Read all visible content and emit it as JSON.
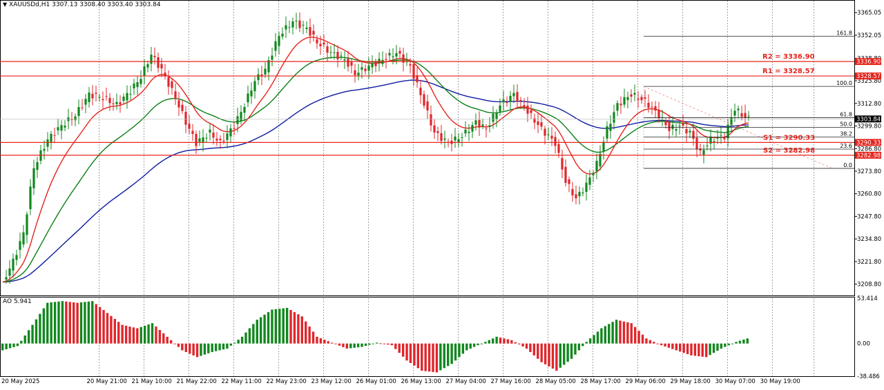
{
  "header": {
    "symbol": "XAUUSDd,H1",
    "ohlc": "3307.13 3308.40 3303.40 3303.84"
  },
  "indicator": {
    "label": "AO 5.941"
  },
  "colors": {
    "bull": "#12871f",
    "bear": "#e0262b",
    "level": "#e5231b",
    "ma_fast": "#e5231b",
    "ma_mid": "#0a7f14",
    "ma_slow": "#0d1aa0",
    "grid": "#8a8a8a"
  },
  "levels": [
    {
      "name": "R2",
      "label": "R2 = 3336.90",
      "value": 3336.9,
      "tag": "3336.90"
    },
    {
      "name": "R1",
      "label": "R1 = 3328.57",
      "value": 3328.57,
      "tag": "3328.57"
    },
    {
      "name": "S1",
      "label": "S1 = 3290.33",
      "value": 3290.33,
      "tag": "3290.33"
    },
    {
      "name": "S2",
      "label": "S2 = 3282.98",
      "value": 3282.98,
      "tag": "3282.98"
    }
  ],
  "fib_levels": [
    {
      "label": "161.8",
      "value": 3351.5
    },
    {
      "label": "100.0",
      "value": 3322.6
    },
    {
      "label": "61.8",
      "value": 3304.6
    },
    {
      "label": "50.0",
      "value": 3299.0
    },
    {
      "label": "38.2",
      "value": 3293.4
    },
    {
      "label": "23.6",
      "value": 3286.5
    },
    {
      "label": "0.0",
      "value": 3275.4
    }
  ],
  "chart_data": [
    {
      "type": "candlestick",
      "title": "XAUUSDd,H1",
      "ylim": [
        3202.3,
        3371.5
      ],
      "y_ticks": [
        "3365.05",
        "3352.05",
        "3338.80",
        "3325.80",
        "3312.80",
        "3299.80",
        "3286.80",
        "3273.80",
        "3260.80",
        "3247.80",
        "3234.80",
        "3221.80",
        "3208.80"
      ],
      "x_ticks": [
        "20 May 2025",
        "20 May 21:00",
        "21 May 10:00",
        "21 May 22:00",
        "22 May 11:00",
        "22 May 23:00",
        "23 May 12:00",
        "26 May 01:00",
        "26 May 13:00",
        "27 May 04:00",
        "27 May 16:00",
        "28 May 05:00",
        "28 May 17:00",
        "29 May 06:00",
        "29 May 18:00",
        "30 May 07:00",
        "30 May 19:00"
      ],
      "current_price": "3303.84",
      "anchors": [
        [
          0,
          3210
        ],
        [
          3,
          3222
        ],
        [
          6,
          3238
        ],
        [
          9,
          3276
        ],
        [
          13,
          3292
        ],
        [
          17,
          3300
        ],
        [
          21,
          3306
        ],
        [
          25,
          3318
        ],
        [
          29,
          3316
        ],
        [
          33,
          3312
        ],
        [
          37,
          3320
        ],
        [
          40,
          3328
        ],
        [
          43,
          3341
        ],
        [
          46,
          3332
        ],
        [
          50,
          3316
        ],
        [
          53,
          3302
        ],
        [
          56,
          3290
        ],
        [
          60,
          3296
        ],
        [
          63,
          3290
        ],
        [
          67,
          3300
        ],
        [
          70,
          3312
        ],
        [
          73,
          3326
        ],
        [
          76,
          3332
        ],
        [
          80,
          3352
        ],
        [
          84,
          3360
        ],
        [
          88,
          3356
        ],
        [
          91,
          3348
        ],
        [
          95,
          3342
        ],
        [
          99,
          3338
        ],
        [
          102,
          3330
        ],
        [
          106,
          3334
        ],
        [
          110,
          3338
        ],
        [
          114,
          3342
        ],
        [
          118,
          3334
        ],
        [
          121,
          3318
        ],
        [
          125,
          3296
        ],
        [
          129,
          3290
        ],
        [
          133,
          3294
        ],
        [
          137,
          3302
        ],
        [
          140,
          3298
        ],
        [
          144,
          3312
        ],
        [
          148,
          3318
        ],
        [
          152,
          3308
        ],
        [
          156,
          3298
        ],
        [
          160,
          3290
        ],
        [
          163,
          3268
        ],
        [
          166,
          3258
        ],
        [
          169,
          3266
        ],
        [
          172,
          3278
        ],
        [
          175,
          3298
        ],
        [
          178,
          3312
        ],
        [
          182,
          3318
        ],
        [
          186,
          3314
        ],
        [
          190,
          3306
        ],
        [
          193,
          3298
        ],
        [
          196,
          3300
        ],
        [
          199,
          3296
        ],
        [
          202,
          3284
        ],
        [
          205,
          3292
        ],
        [
          209,
          3294
        ],
        [
          212,
          3310
        ],
        [
          214,
          3306
        ],
        [
          216,
          3304
        ]
      ]
    },
    {
      "type": "bar",
      "title": "AO 5.941",
      "ylim": [
        -38.486,
        53.414
      ],
      "y_ticks": [
        "53.414",
        "0.00",
        "-38.486"
      ],
      "anchors": [
        [
          0,
          -8
        ],
        [
          4,
          -3
        ],
        [
          8,
          22
        ],
        [
          12,
          48
        ],
        [
          16,
          50
        ],
        [
          20,
          48
        ],
        [
          24,
          50
        ],
        [
          28,
          36
        ],
        [
          32,
          22
        ],
        [
          36,
          18
        ],
        [
          40,
          24
        ],
        [
          44,
          8
        ],
        [
          48,
          -8
        ],
        [
          52,
          -16
        ],
        [
          56,
          -10
        ],
        [
          60,
          -6
        ],
        [
          64,
          8
        ],
        [
          68,
          28
        ],
        [
          72,
          40
        ],
        [
          76,
          42
        ],
        [
          80,
          32
        ],
        [
          84,
          8
        ],
        [
          88,
          1
        ],
        [
          92,
          -6
        ],
        [
          96,
          -4
        ],
        [
          100,
          1
        ],
        [
          104,
          -2
        ],
        [
          108,
          -20
        ],
        [
          112,
          -32
        ],
        [
          116,
          -34
        ],
        [
          120,
          -24
        ],
        [
          124,
          -8
        ],
        [
          128,
          0
        ],
        [
          132,
          8
        ],
        [
          136,
          4
        ],
        [
          140,
          -6
        ],
        [
          144,
          -22
        ],
        [
          148,
          -32
        ],
        [
          152,
          -18
        ],
        [
          156,
          2
        ],
        [
          160,
          18
        ],
        [
          164,
          28
        ],
        [
          168,
          24
        ],
        [
          172,
          6
        ],
        [
          176,
          -2
        ],
        [
          180,
          -8
        ],
        [
          184,
          -14
        ],
        [
          188,
          -16
        ],
        [
          192,
          -6
        ],
        [
          196,
          2
        ],
        [
          199,
          6
        ]
      ]
    }
  ]
}
